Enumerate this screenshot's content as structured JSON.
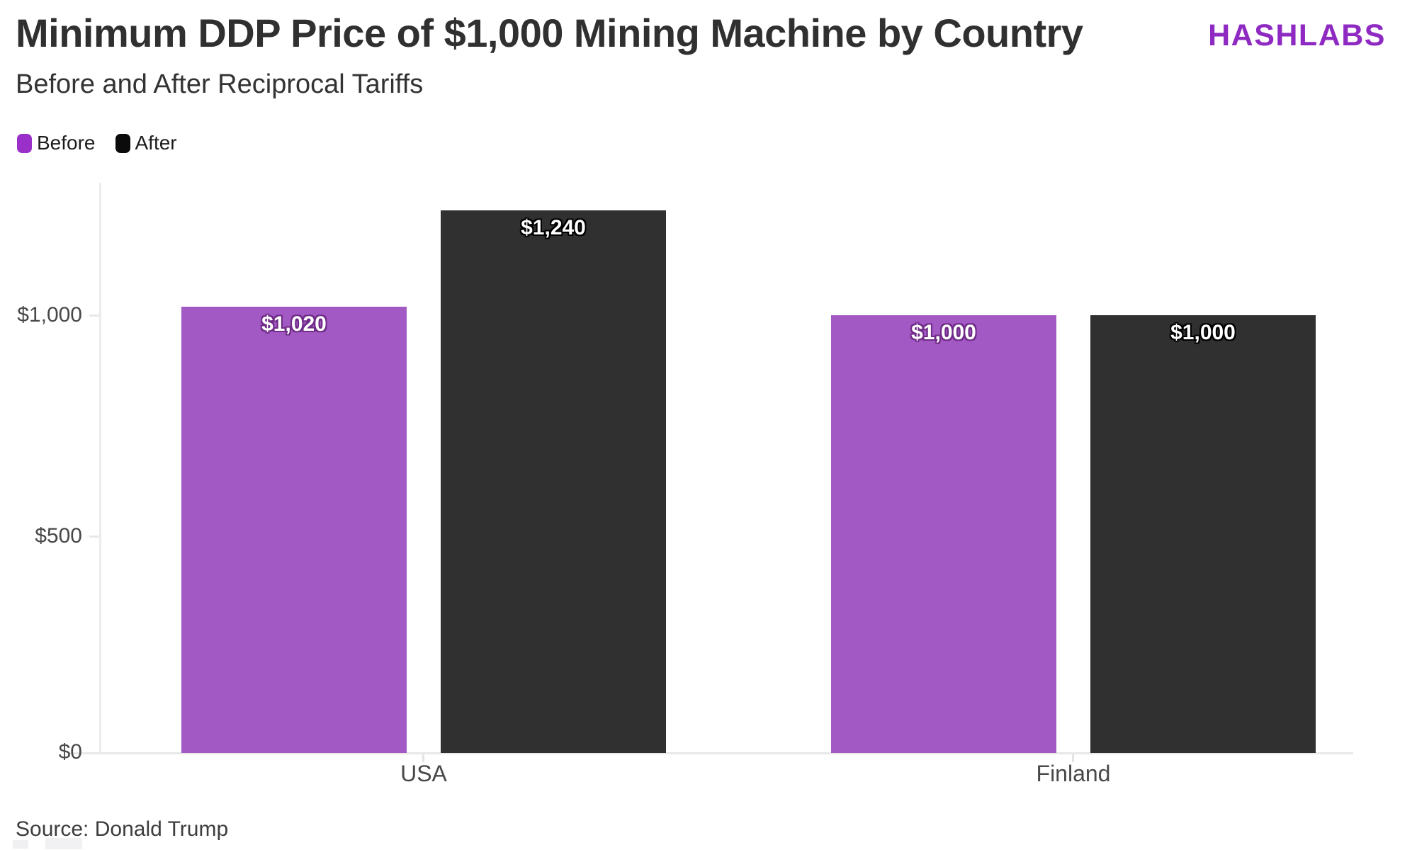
{
  "brand": {
    "logo_text": "HASHLABS",
    "logo_color": "#8e2ac2"
  },
  "header": {
    "title": "Minimum DDP Price of $1,000 Mining Machine by Country",
    "subtitle": "Before and After Reciprocal Tariffs"
  },
  "legend": {
    "items": [
      {
        "label": "Before",
        "color": "#9a30c9"
      },
      {
        "label": "After",
        "color": "#0b0b0b"
      }
    ]
  },
  "chart_data": {
    "type": "bar",
    "title": "Minimum DDP Price of $1,000 Mining Machine by Country",
    "subtitle": "Before and After Reciprocal Tariffs",
    "categories": [
      "USA",
      "Finland"
    ],
    "series": [
      {
        "name": "Before",
        "color": "#a259c4",
        "values": [
          1020,
          1000
        ],
        "value_labels": [
          "$1,020",
          "$1,000"
        ]
      },
      {
        "name": "After",
        "color": "#303030",
        "values": [
          1240,
          1000
        ],
        "value_labels": [
          "$1,240",
          "$1,000"
        ]
      }
    ],
    "y_axis": {
      "ticks": [
        {
          "label": "$0",
          "value": 0
        },
        {
          "label": "$500",
          "value": 500
        },
        {
          "label": "$1,000",
          "value": 1000
        }
      ],
      "range": [
        0,
        1300
      ]
    },
    "grid": "off",
    "legend_position": "top-left"
  },
  "footer": {
    "source": "Source: Donald Trump"
  }
}
